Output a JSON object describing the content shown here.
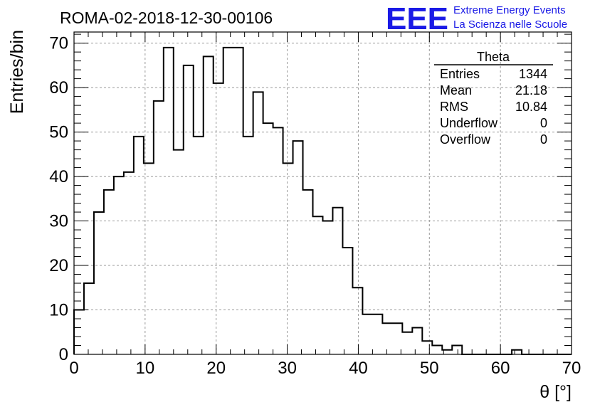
{
  "chart_data": {
    "type": "bar",
    "title": "ROMA-02-2018-12-30-00106",
    "xlabel": "θ [°]",
    "ylabel": "Entries/bin",
    "xlim": [
      0,
      70
    ],
    "ylim": [
      0,
      72.5
    ],
    "x_ticks": [
      "0",
      "10",
      "20",
      "30",
      "40",
      "50",
      "60",
      "70"
    ],
    "y_ticks": [
      "0",
      "10",
      "20",
      "30",
      "40",
      "50",
      "60",
      "70"
    ],
    "grid": true,
    "bin_width": 1.4,
    "values": [
      10,
      16,
      32,
      37,
      40,
      41,
      49,
      43,
      57,
      69,
      46,
      65,
      49,
      67,
      61,
      69,
      69,
      49,
      59,
      52,
      51,
      43,
      48,
      37,
      31,
      30,
      33,
      24,
      15,
      9,
      9,
      7,
      7,
      5,
      6,
      3,
      2,
      1,
      2,
      0,
      0,
      0,
      0,
      0,
      1,
      0,
      0,
      0,
      0,
      0
    ]
  },
  "stats": {
    "title": "Theta",
    "rows": [
      {
        "label": "Entries",
        "value": "1344"
      },
      {
        "label": "Mean",
        "value": "21.18"
      },
      {
        "label": "RMS",
        "value": "10.84"
      },
      {
        "label": "Underflow",
        "value": "0"
      },
      {
        "label": "Overflow",
        "value": "0"
      }
    ]
  },
  "logo": {
    "mark": "EEE",
    "line1": "Extreme Energy Events",
    "line2": "La Scienza nelle Scuole",
    "color": "#1a1ae6"
  }
}
